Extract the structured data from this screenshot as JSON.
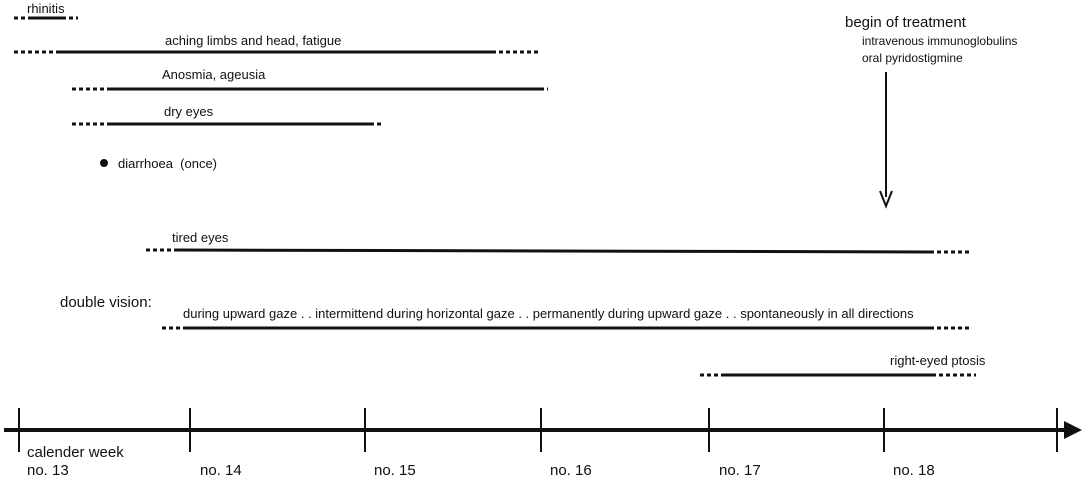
{
  "symptoms": {
    "rhinitis": "rhinitis",
    "aching": "aching limbs and head, fatigue",
    "anosmia": "Anosmia, ageusia",
    "dry_eyes": "dry eyes",
    "diarrhoea": "diarrhoea  (once)",
    "tired_eyes": "tired eyes",
    "ptosis": "right-eyed ptosis"
  },
  "double_vision": {
    "label": "double vision",
    "phases": [
      "during upward gaze",
      "intermittend during horizontal gaze",
      "permanently during upward gaze",
      "spontaneously in all directions"
    ]
  },
  "treatment": {
    "title": "begin of treatment",
    "item1": "intravenous immunoglobulins",
    "item2": "oral pyridostigmine"
  },
  "axis": {
    "caption": "calender week",
    "weeks": [
      "no. 13",
      "no. 14",
      "no. 15",
      "no. 16",
      "no. 17",
      "no. 18"
    ]
  }
}
